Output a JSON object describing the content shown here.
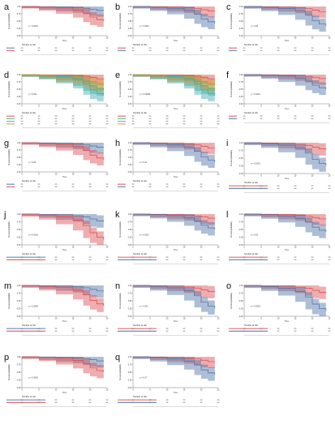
{
  "figure": {
    "panels": [
      {
        "letter": "a",
        "n_groups": 2,
        "pvalue_label": "p < 0.0001",
        "risk_title": "Number at risk",
        "x_label": "Time",
        "y_label": "Survival probability",
        "legend_layout": "rows"
      },
      {
        "letter": "b",
        "n_groups": 2,
        "pvalue_label": "p = 0.0001",
        "risk_title": "Number at risk",
        "x_label": "Time",
        "y_label": "Survival probability",
        "legend_layout": "rows"
      },
      {
        "letter": "c",
        "n_groups": 2,
        "pvalue_label": "p = 0.65",
        "risk_title": "Number at risk",
        "x_label": "Time",
        "y_label": "Survival probability",
        "legend_layout": "rows"
      },
      {
        "letter": "d",
        "n_groups": 4,
        "pvalue_label": "p = 0.001",
        "risk_title": "Number at risk",
        "x_label": "Time",
        "y_label": "Survival probability",
        "legend_layout": "rows"
      },
      {
        "letter": "e",
        "n_groups": 4,
        "pvalue_label": "p = 0.00089",
        "risk_title": "Number at risk",
        "x_label": "Time",
        "y_label": "Survival probability",
        "legend_layout": "rows"
      },
      {
        "letter": "f",
        "n_groups": 2,
        "pvalue_label": "p < 0.0001",
        "risk_title": "Number at risk",
        "x_label": "Time",
        "y_label": "Survival probability",
        "legend_layout": "rows"
      },
      {
        "letter": "g",
        "n_groups": 2,
        "pvalue_label": "p = 0.05",
        "risk_title": "Number at risk",
        "x_label": "Time",
        "y_label": "Survival probability",
        "legend_layout": "rows"
      },
      {
        "letter": "h",
        "n_groups": 2,
        "pvalue_label": "p = 0.12",
        "risk_title": "Number at risk",
        "x_label": "Time",
        "y_label": "Survival probability",
        "legend_layout": "rows"
      },
      {
        "letter": "i",
        "n_groups": 2,
        "pvalue_label": "p = 0.0016",
        "risk_title": "Number at risk",
        "x_label": "Time",
        "y_label": "Survival probability",
        "legend_layout": "long"
      },
      {
        "letter": "j",
        "n_groups": 2,
        "pvalue_label": "p = 0.0003",
        "risk_title": "Number at risk",
        "x_label": "Time",
        "y_label": "Survival probability",
        "legend_layout": "long"
      },
      {
        "letter": "k",
        "n_groups": 2,
        "pvalue_label": "p = 0.0012",
        "risk_title": "Number at risk",
        "x_label": "Time",
        "y_label": "Survival probability",
        "legend_layout": "long"
      },
      {
        "letter": "l",
        "n_groups": 2,
        "pvalue_label": "p = 0.02",
        "risk_title": "Number at risk",
        "x_label": "Time",
        "y_label": "Survival probability",
        "legend_layout": "long"
      },
      {
        "letter": "m",
        "n_groups": 2,
        "pvalue_label": "p = 0.0095",
        "risk_title": "Number at risk",
        "x_label": "Time",
        "y_label": "Survival probability",
        "legend_layout": "long"
      },
      {
        "letter": "n",
        "n_groups": 2,
        "pvalue_label": "p = 0.022",
        "risk_title": "Number at risk",
        "x_label": "Time",
        "y_label": "Survival probability",
        "legend_layout": "long"
      },
      {
        "letter": "o",
        "n_groups": 2,
        "pvalue_label": "p = 0.0029",
        "risk_title": "Number at risk",
        "x_label": "Time",
        "y_label": "Survival probability",
        "legend_layout": "long"
      },
      {
        "letter": "p",
        "n_groups": 2,
        "pvalue_label": "p = 0.0036",
        "risk_title": "Number at risk",
        "x_label": "Time",
        "y_label": "Survival probability",
        "legend_layout": "long"
      },
      {
        "letter": "q",
        "n_groups": 2,
        "pvalue_label": "p = 0.17",
        "risk_title": "Number at risk",
        "x_label": "Time",
        "y_label": "Survival probability",
        "legend_layout": "long"
      }
    ],
    "colors": {
      "blue": "#4a6fa5",
      "red": "#d9494e",
      "green": "#4caf7a",
      "orange": "#d8962f",
      "teal": "#3fa7b3",
      "band_alpha": 0.45
    }
  },
  "chart_data": {
    "type": "line",
    "kind": "kaplan-meier",
    "xlim": [
      0,
      25
    ],
    "ylim": [
      0,
      1
    ],
    "y_ticks": [
      "0.00",
      "0.25",
      "0.50",
      "0.75",
      "1.00"
    ],
    "x_ticks": [
      "0",
      "5",
      "10",
      "15",
      "20",
      "25"
    ],
    "series_templates": {
      "two_group_good": [
        [
          0,
          1.0
        ],
        [
          5,
          0.99
        ],
        [
          10,
          0.97
        ],
        [
          15,
          0.93
        ],
        [
          18,
          0.88
        ],
        [
          20,
          0.8
        ],
        [
          22,
          0.72
        ],
        [
          24,
          0.7
        ]
      ],
      "two_group_bad": [
        [
          0,
          1.0
        ],
        [
          5,
          0.97
        ],
        [
          10,
          0.92
        ],
        [
          15,
          0.82
        ],
        [
          18,
          0.66
        ],
        [
          20,
          0.45
        ],
        [
          22,
          0.32
        ],
        [
          24,
          0.25
        ]
      ]
    }
  }
}
